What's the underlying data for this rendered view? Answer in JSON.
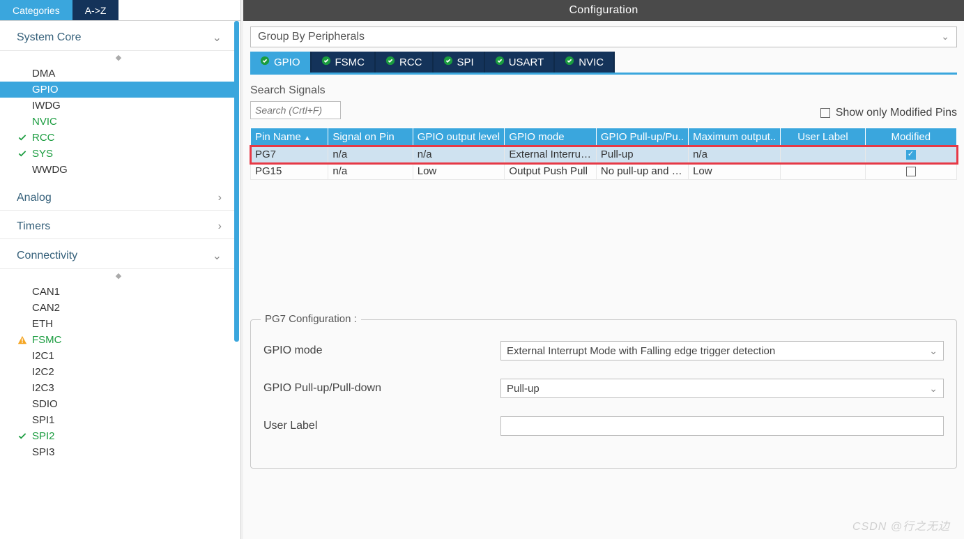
{
  "sidebar": {
    "tabs": {
      "categories": "Categories",
      "a_z": "A->Z"
    },
    "groups": [
      {
        "title": "System Core",
        "expand": "⌄",
        "items": [
          {
            "label": "DMA",
            "state": ""
          },
          {
            "label": "GPIO",
            "state": "",
            "selected": true
          },
          {
            "label": "IWDG",
            "state": ""
          },
          {
            "label": "NVIC",
            "state": "green"
          },
          {
            "label": "RCC",
            "state": "green-check"
          },
          {
            "label": "SYS",
            "state": "green-check"
          },
          {
            "label": "WWDG",
            "state": ""
          }
        ]
      },
      {
        "title": "Analog",
        "expand": "›",
        "items": []
      },
      {
        "title": "Timers",
        "expand": "›",
        "items": []
      },
      {
        "title": "Connectivity",
        "expand": "⌄",
        "items": [
          {
            "label": "CAN1",
            "state": ""
          },
          {
            "label": "CAN2",
            "state": ""
          },
          {
            "label": "ETH",
            "state": ""
          },
          {
            "label": "FSMC",
            "state": "green-warn"
          },
          {
            "label": "I2C1",
            "state": ""
          },
          {
            "label": "I2C2",
            "state": ""
          },
          {
            "label": "I2C3",
            "state": ""
          },
          {
            "label": "SDIO",
            "state": ""
          },
          {
            "label": "SPI1",
            "state": ""
          },
          {
            "label": "SPI2",
            "state": "green-check"
          },
          {
            "label": "SPI3",
            "state": ""
          }
        ]
      }
    ]
  },
  "main": {
    "header": "Configuration",
    "group_select": "Group By Peripherals",
    "ptabs": [
      "GPIO",
      "FSMC",
      "RCC",
      "SPI",
      "USART",
      "NVIC"
    ],
    "search": {
      "label": "Search Signals",
      "placeholder": "Search (Crtl+F)"
    },
    "show_mod": "Show only Modified Pins",
    "columns": [
      "Pin Name",
      "Signal on Pin",
      "GPIO output level",
      "GPIO mode",
      "GPIO Pull-up/Pu..",
      "Maximum output..",
      "User Label",
      "Modified"
    ],
    "rows": [
      {
        "pin": "PG7",
        "sig": "n/a",
        "out": "n/a",
        "mode": "External Interrup...",
        "pull": "Pull-up",
        "max": "n/a",
        "label": "",
        "mod": true,
        "sel": true
      },
      {
        "pin": "PG15",
        "sig": "n/a",
        "out": "Low",
        "mode": "Output Push Pull",
        "pull": "No pull-up and n...",
        "max": "Low",
        "label": "",
        "mod": false,
        "sel": false
      }
    ],
    "detail_title": "PG7 Configuration :",
    "form": {
      "mode_label": "GPIO mode",
      "mode_val": "External Interrupt Mode with Falling edge trigger detection",
      "pull_label": "GPIO Pull-up/Pull-down",
      "pull_val": "Pull-up",
      "user_label": "User Label",
      "user_val": ""
    }
  },
  "watermark": "CSDN @行之无边"
}
